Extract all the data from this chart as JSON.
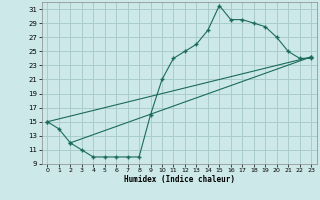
{
  "xlabel": "Humidex (Indice chaleur)",
  "bg_color": "#cde8e8",
  "grid_color": "#aacccc",
  "line_color": "#1a6b5a",
  "xlim": [
    -0.5,
    23.5
  ],
  "ylim": [
    9,
    32
  ],
  "xticks": [
    0,
    1,
    2,
    3,
    4,
    5,
    6,
    7,
    8,
    9,
    10,
    11,
    12,
    13,
    14,
    15,
    16,
    17,
    18,
    19,
    20,
    21,
    22,
    23
  ],
  "yticks": [
    9,
    11,
    13,
    15,
    17,
    19,
    21,
    23,
    25,
    27,
    29,
    31
  ],
  "line1_x": [
    0,
    1,
    2,
    3,
    4,
    5,
    6,
    7,
    8,
    9,
    10,
    11,
    12,
    13,
    14,
    15,
    16,
    17,
    18,
    19,
    20,
    21,
    22,
    23
  ],
  "line1_y": [
    15,
    14,
    12,
    11,
    10,
    10,
    10,
    10,
    10,
    16,
    21,
    24,
    25,
    26,
    28,
    31.5,
    29.5,
    29.5,
    29,
    28.5,
    27,
    25,
    24,
    24
  ],
  "line2_x": [
    0,
    23
  ],
  "line2_y": [
    15,
    24.2
  ],
  "line3_x": [
    2,
    23
  ],
  "line3_y": [
    12,
    24.2
  ],
  "marker": "+"
}
